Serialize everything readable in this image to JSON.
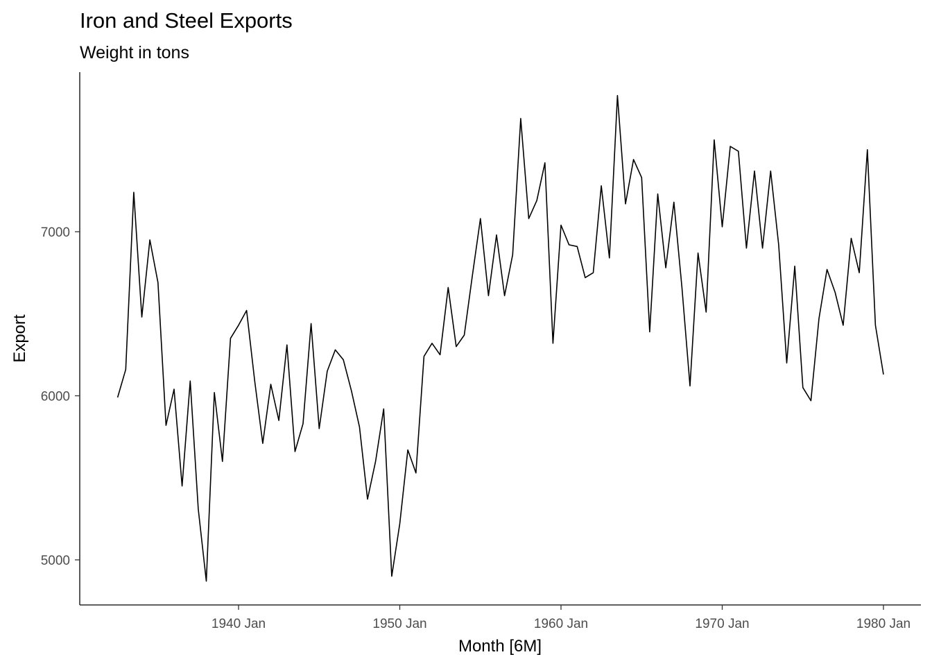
{
  "chart_data": {
    "type": "line",
    "title": "Iron and Steel Exports",
    "subtitle": "Weight in tons",
    "xlabel": "Month [6M]",
    "ylabel": "Export",
    "x_ticks": [
      "1940 Jan",
      "1950 Jan",
      "1960 Jan",
      "1970 Jan",
      "1980 Jan"
    ],
    "y_ticks": [
      "5000",
      "6000",
      "7000"
    ],
    "ylim": [
      4730,
      8000
    ],
    "grid": false,
    "series": [
      {
        "color": "#000000",
        "x": [
          "1932 Jul",
          "1933 Jan",
          "1933 Jul",
          "1934 Jan",
          "1934 Jul",
          "1935 Jan",
          "1935 Jul",
          "1936 Jan",
          "1936 Jul",
          "1937 Jan",
          "1937 Jul",
          "1938 Jan",
          "1938 Jul",
          "1939 Jan",
          "1939 Jul",
          "1940 Jan",
          "1940 Jul",
          "1941 Jan",
          "1941 Jul",
          "1942 Jan",
          "1942 Jul",
          "1943 Jan",
          "1943 Jul",
          "1944 Jan",
          "1944 Jul",
          "1945 Jan",
          "1945 Jul",
          "1946 Jan",
          "1946 Jul",
          "1947 Jan",
          "1947 Jul",
          "1948 Jan",
          "1948 Jul",
          "1949 Jan",
          "1949 Jul",
          "1950 Jan",
          "1950 Jul",
          "1951 Jan",
          "1951 Jul",
          "1952 Jan",
          "1952 Jul",
          "1953 Jan",
          "1953 Jul",
          "1954 Jan",
          "1954 Jul",
          "1955 Jan",
          "1955 Jul",
          "1956 Jan",
          "1956 Jul",
          "1957 Jan",
          "1957 Jul",
          "1958 Jan",
          "1958 Jul",
          "1959 Jan",
          "1959 Jul",
          "1960 Jan",
          "1960 Jul",
          "1961 Jan",
          "1961 Jul",
          "1962 Jan",
          "1962 Jul",
          "1963 Jan",
          "1963 Jul",
          "1964 Jan",
          "1964 Jul",
          "1965 Jan",
          "1965 Jul",
          "1966 Jan",
          "1966 Jul",
          "1967 Jan",
          "1967 Jul",
          "1968 Jan",
          "1968 Jul",
          "1969 Jan",
          "1969 Jul",
          "1970 Jan",
          "1970 Jul",
          "1971 Jan",
          "1971 Jul",
          "1972 Jan",
          "1972 Jul",
          "1973 Jan",
          "1973 Jul",
          "1974 Jan",
          "1974 Jul",
          "1975 Jan",
          "1975 Jul",
          "1976 Jan",
          "1976 Jul",
          "1977 Jan",
          "1977 Jul",
          "1978 Jan",
          "1978 Jul",
          "1979 Jan",
          "1979 Jul",
          "1980 Jan"
        ],
        "values": [
          5990,
          6160,
          7240,
          6480,
          6950,
          6690,
          5820,
          6040,
          5450,
          6090,
          5310,
          4870,
          6020,
          5600,
          6350,
          6430,
          6520,
          6090,
          5710,
          6070,
          5850,
          6310,
          5660,
          5830,
          6440,
          5800,
          6150,
          6280,
          6220,
          6030,
          5810,
          5370,
          5600,
          5920,
          4900,
          5220,
          5670,
          5530,
          6240,
          6320,
          6250,
          6660,
          6300,
          6370,
          6730,
          7080,
          6610,
          6980,
          6610,
          6860,
          7690,
          7080,
          7190,
          7420,
          6320,
          7040,
          6920,
          6910,
          6720,
          6750,
          7280,
          6840,
          7830,
          7170,
          7440,
          7330,
          6390,
          7230,
          6780,
          7180,
          6660,
          6060,
          6870,
          6510,
          7560,
          7030,
          7520,
          7490,
          6900,
          7370,
          6900,
          7370,
          6920,
          6200,
          6790,
          6050,
          5970,
          6470,
          6770,
          6630,
          6430,
          6960,
          6750,
          7500,
          6430,
          6130
        ]
      }
    ]
  }
}
